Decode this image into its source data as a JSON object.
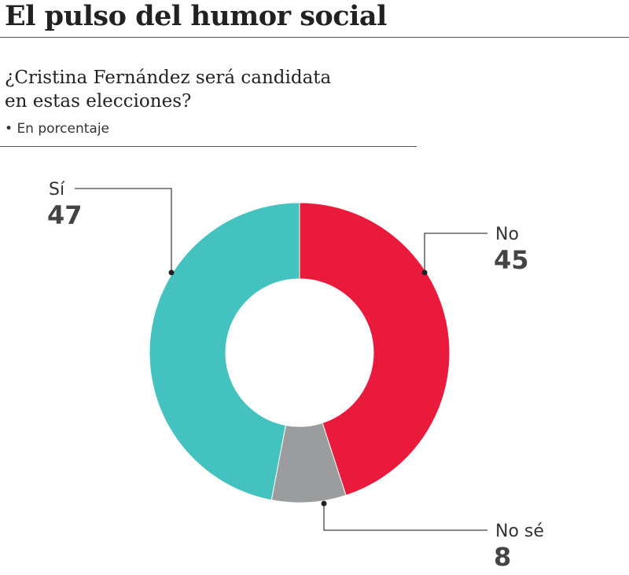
{
  "chart_data": {
    "type": "donut",
    "title": "El pulso del humor social",
    "subtitle": "¿Cristina Fernández será candidata en estas elecciones?",
    "note": "En porcentaje",
    "categories": [
      "No",
      "No sé",
      "Sí"
    ],
    "values": [
      45,
      8,
      47
    ],
    "colors": [
      "#ea1a3d",
      "#9b9c9e",
      "#44c2bf"
    ]
  }
}
